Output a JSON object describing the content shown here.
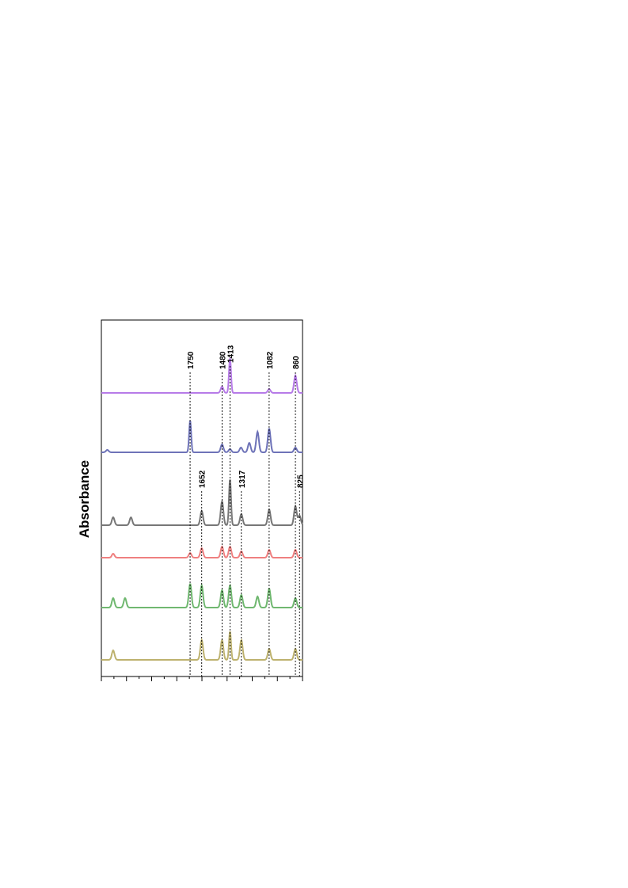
{
  "chart_data": {
    "type": "line",
    "orientation": "rotated 90deg (wavenumber axis runs left to right across page, spectra stacked top to bottom)",
    "ylabel": "Absorbance",
    "xlim": [
      2500,
      800
    ],
    "grid": false,
    "annotations": [
      {
        "label": "1750",
        "x": 1750
      },
      {
        "label": "1480",
        "x": 1480
      },
      {
        "label": "1413",
        "x": 1413
      },
      {
        "label": "1082",
        "x": 1082
      },
      {
        "label": "860",
        "x": 860
      },
      {
        "label": "1652",
        "x": 1652
      },
      {
        "label": "1317",
        "x": 1317
      },
      {
        "label": "825",
        "x": 825
      }
    ],
    "series": [
      {
        "color": "#b77be8",
        "baseline": 0.0,
        "peaks": [
          [
            1480,
            8
          ],
          [
            1413,
            44
          ],
          [
            1082,
            5
          ],
          [
            860,
            22
          ]
        ]
      },
      {
        "color": "#6e73b8",
        "baseline": 0.0,
        "peaks": [
          [
            1750,
            40
          ],
          [
            1480,
            10
          ],
          [
            1413,
            4
          ],
          [
            1320,
            6
          ],
          [
            1250,
            12
          ],
          [
            1180,
            26
          ],
          [
            1082,
            30
          ],
          [
            860,
            6
          ],
          [
            2450,
            3
          ]
        ]
      },
      {
        "color": "#777777",
        "baseline": 0.0,
        "peaks": [
          [
            2400,
            10
          ],
          [
            2250,
            10
          ],
          [
            1652,
            18
          ],
          [
            1480,
            30
          ],
          [
            1413,
            58
          ],
          [
            1317,
            14
          ],
          [
            1082,
            20
          ],
          [
            860,
            24
          ],
          [
            825,
            12
          ]
        ]
      },
      {
        "color": "#ef8080",
        "baseline": 0.0,
        "peaks": [
          [
            2400,
            5
          ],
          [
            1750,
            6
          ],
          [
            1652,
            12
          ],
          [
            1480,
            14
          ],
          [
            1413,
            14
          ],
          [
            1317,
            8
          ],
          [
            1082,
            10
          ],
          [
            860,
            10
          ]
        ]
      },
      {
        "color": "#70b870",
        "baseline": 0.0,
        "peaks": [
          [
            2400,
            12
          ],
          [
            2300,
            12
          ],
          [
            1750,
            30
          ],
          [
            1652,
            28
          ],
          [
            1480,
            22
          ],
          [
            1413,
            28
          ],
          [
            1317,
            16
          ],
          [
            1180,
            14
          ],
          [
            1082,
            24
          ],
          [
            860,
            12
          ]
        ]
      },
      {
        "color": "#bdb26e",
        "baseline": 0.0,
        "peaks": [
          [
            2400,
            12
          ],
          [
            1652,
            25
          ],
          [
            1480,
            25
          ],
          [
            1413,
            36
          ],
          [
            1317,
            25
          ],
          [
            1082,
            14
          ],
          [
            860,
            14
          ]
        ]
      }
    ]
  }
}
